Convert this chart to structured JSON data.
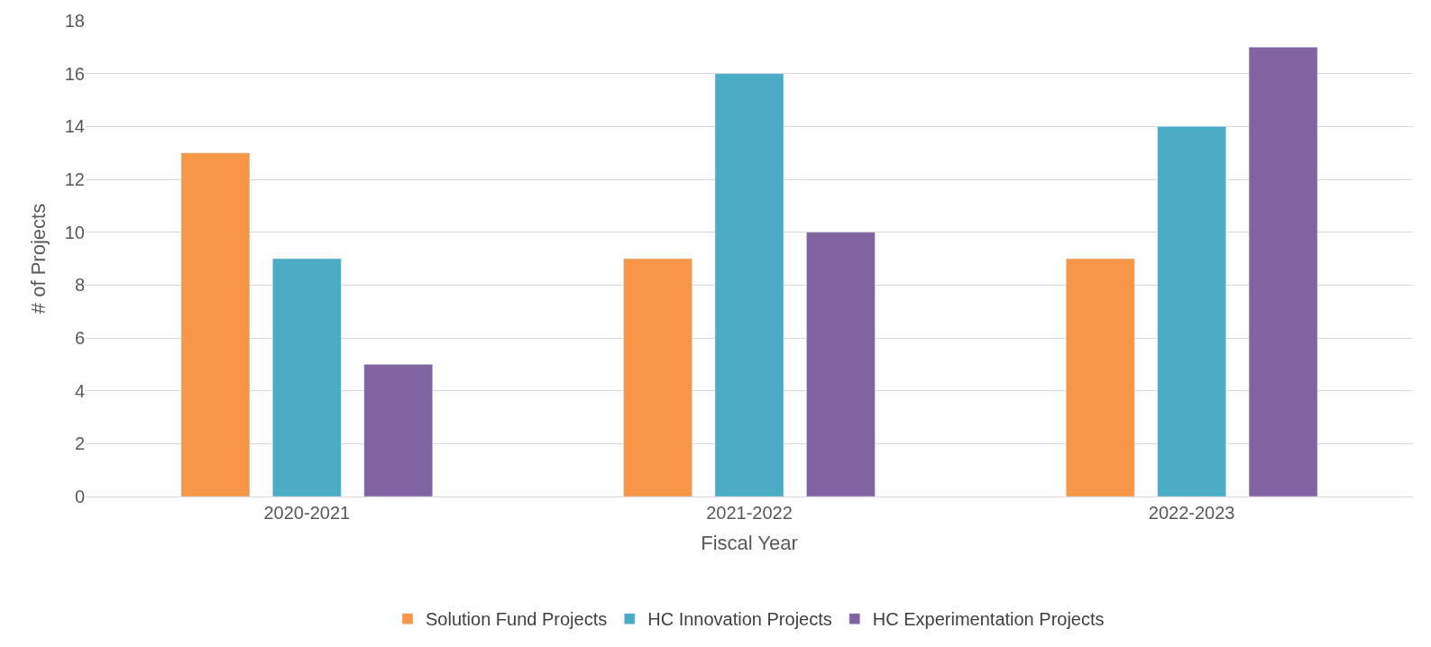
{
  "chart_data": {
    "type": "bar",
    "xlabel": "Fiscal Year",
    "ylabel": "# of Projects",
    "categories": [
      "2020-2021",
      "2021-2022",
      "2022-2023"
    ],
    "series": [
      {
        "name": "Solution Fund Projects",
        "color": "#f79646",
        "values": [
          13,
          9,
          9
        ]
      },
      {
        "name": "HC Innovation Projects",
        "color": "#4bacc6",
        "values": [
          9,
          16,
          14
        ]
      },
      {
        "name": "HC Experimentation Projects",
        "color": "#8064a2",
        "values": [
          5,
          10,
          17
        ]
      }
    ],
    "ylim": [
      0,
      18
    ],
    "yticks": [
      0,
      2,
      4,
      6,
      8,
      10,
      12,
      14,
      16,
      18
    ],
    "grid": "y",
    "legend": "bottom"
  }
}
